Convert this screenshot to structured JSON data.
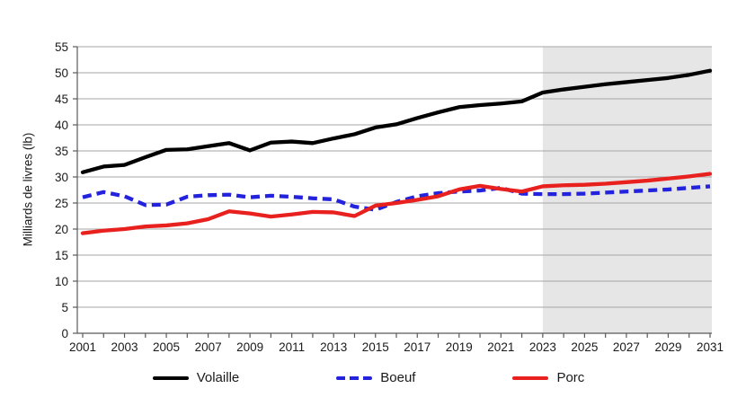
{
  "figure": {
    "background": "#ffffff",
    "gridline_color": "#a6a6a6",
    "axis_color": "#595959",
    "forecast_shading_color": "#e6e6e6"
  },
  "legend": {
    "items": [
      {
        "label": "Volaille",
        "color": "#000000",
        "style": "solid"
      },
      {
        "label": "Boeuf",
        "color": "#2323dd",
        "style": "dashed"
      },
      {
        "label": "Porc",
        "color": "#e8201e",
        "style": "solid"
      }
    ]
  },
  "chart_data": {
    "type": "line",
    "title": "",
    "xlabel": "",
    "ylabel": "Milliards de livres (lb)",
    "x": [
      2001,
      2002,
      2003,
      2004,
      2005,
      2006,
      2007,
      2008,
      2009,
      2010,
      2011,
      2012,
      2013,
      2014,
      2015,
      2016,
      2017,
      2018,
      2019,
      2020,
      2021,
      2022,
      2023,
      2024,
      2025,
      2026,
      2027,
      2028,
      2029,
      2030,
      2031
    ],
    "x_tick_label_step": 2,
    "ylim": [
      0,
      55
    ],
    "y_ticks": [
      0,
      5,
      10,
      15,
      20,
      25,
      30,
      35,
      40,
      45,
      50,
      55
    ],
    "grid": "horizontal",
    "legend_position": "bottom",
    "forecast_region": {
      "start_x": 2023,
      "note": "shaded projection period 2023-2031"
    },
    "series": [
      {
        "name": "Volaille",
        "color": "#000000",
        "style": "solid",
        "values": [
          30.9,
          32.0,
          32.3,
          33.8,
          35.2,
          35.3,
          35.9,
          36.5,
          35.1,
          36.6,
          36.8,
          36.5,
          37.4,
          38.2,
          39.5,
          40.1,
          41.3,
          42.4,
          43.4,
          43.8,
          44.1,
          44.5,
          46.2,
          46.8,
          47.3,
          47.8,
          48.2,
          48.6,
          49.0,
          49.6,
          50.4
        ]
      },
      {
        "name": "Boeuf",
        "color": "#2323dd",
        "style": "dashed",
        "values": [
          26.1,
          27.1,
          26.3,
          24.6,
          24.7,
          26.2,
          26.5,
          26.6,
          26.1,
          26.4,
          26.2,
          25.9,
          25.7,
          24.3,
          23.7,
          25.2,
          26.3,
          26.9,
          27.2,
          27.4,
          27.9,
          26.8,
          26.7,
          26.7,
          26.8,
          27.0,
          27.2,
          27.4,
          27.6,
          27.9,
          28.2
        ]
      },
      {
        "name": "Porc",
        "color": "#e8201e",
        "style": "solid",
        "values": [
          19.2,
          19.7,
          20.0,
          20.5,
          20.7,
          21.1,
          21.9,
          23.4,
          23.0,
          22.4,
          22.8,
          23.3,
          23.2,
          22.5,
          24.5,
          25.0,
          25.6,
          26.3,
          27.6,
          28.3,
          27.7,
          27.2,
          28.2,
          28.4,
          28.5,
          28.7,
          29.0,
          29.3,
          29.7,
          30.1,
          30.6
        ]
      }
    ]
  }
}
